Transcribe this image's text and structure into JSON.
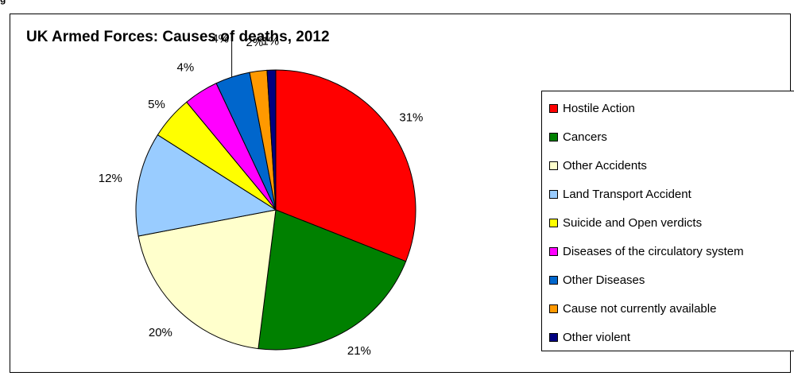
{
  "page": {
    "header_fragment": "g"
  },
  "chart_data": {
    "type": "pie",
    "title": "UK Armed Forces: Causes of deaths, 2012",
    "legend_position": "right",
    "slices": [
      {
        "name": "Hostile Action",
        "value": 31,
        "label": "31%",
        "color": "#ff0000"
      },
      {
        "name": "Cancers",
        "value": 21,
        "label": "21%",
        "color": "#008000"
      },
      {
        "name": "Other Accidents",
        "value": 20,
        "label": "20%",
        "color": "#ffffcc"
      },
      {
        "name": "Land Transport Accident",
        "value": 12,
        "label": "12%",
        "color": "#99ccff"
      },
      {
        "name": "Suicide and Open verdicts",
        "value": 5,
        "label": "5%",
        "color": "#ffff00"
      },
      {
        "name": "Diseases of the circulatory system",
        "value": 4,
        "label": "4%",
        "color": "#ff00ff"
      },
      {
        "name": "Other Diseases",
        "value": 4,
        "label": "4%",
        "color": "#0066cc"
      },
      {
        "name": "Cause not currently available",
        "value": 2,
        "label": "2%",
        "color": "#ff9900"
      },
      {
        "name": "Other violent",
        "value": 1,
        "label": "1%",
        "color": "#000080"
      }
    ]
  }
}
